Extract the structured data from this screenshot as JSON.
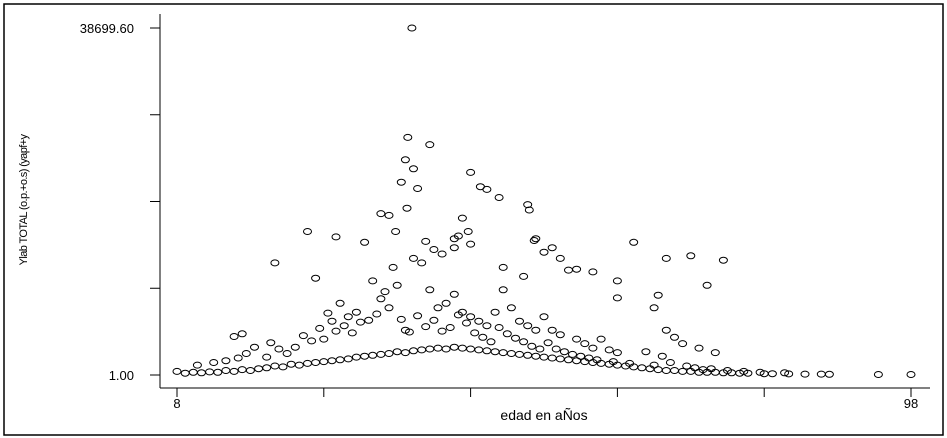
{
  "chart_data": {
    "type": "scatter",
    "xlabel": "edad en aÑos",
    "ylabel": "Ylab TOTAL (o.p.+o.s) (yapf+y",
    "xlim": [
      8,
      98
    ],
    "ylim": [
      1.0,
      38699.6
    ],
    "x_tick_labels": [
      "8",
      "98"
    ],
    "y_tick_labels": [
      "1.00",
      "38699.60"
    ],
    "x_ticks": [
      8,
      26,
      44,
      62,
      80,
      98
    ],
    "y_ticks": [
      1.0,
      9675.15,
      19350.3,
      29024.45,
      38699.6
    ],
    "grid": false,
    "legend": "none",
    "marker": "open-circle",
    "colors": {
      "marker": "#000000",
      "axis": "#000000",
      "background": "#ffffff"
    },
    "points": [
      [
        8,
        400
      ],
      [
        9,
        200
      ],
      [
        10,
        300
      ],
      [
        11,
        250
      ],
      [
        12,
        350
      ],
      [
        13,
        300
      ],
      [
        14,
        500
      ],
      [
        15,
        400
      ],
      [
        16,
        600
      ],
      [
        17,
        500
      ],
      [
        18,
        700
      ],
      [
        19,
        800
      ],
      [
        20,
        1000
      ],
      [
        21,
        900
      ],
      [
        22,
        1200
      ],
      [
        23,
        1100
      ],
      [
        24,
        1300
      ],
      [
        25,
        1400
      ],
      [
        26,
        1500
      ],
      [
        27,
        1600
      ],
      [
        28,
        1700
      ],
      [
        29,
        1800
      ],
      [
        30,
        2000
      ],
      [
        31,
        2100
      ],
      [
        32,
        2200
      ],
      [
        33,
        2300
      ],
      [
        34,
        2400
      ],
      [
        35,
        2600
      ],
      [
        36,
        2500
      ],
      [
        37,
        2700
      ],
      [
        38,
        2800
      ],
      [
        39,
        2900
      ],
      [
        40,
        3000
      ],
      [
        41,
        2900
      ],
      [
        42,
        3100
      ],
      [
        43,
        3000
      ],
      [
        44,
        2900
      ],
      [
        45,
        2800
      ],
      [
        46,
        2700
      ],
      [
        47,
        2600
      ],
      [
        48,
        2500
      ],
      [
        49,
        2400
      ],
      [
        50,
        2300
      ],
      [
        51,
        2200
      ],
      [
        52,
        2100
      ],
      [
        53,
        2000
      ],
      [
        54,
        1900
      ],
      [
        55,
        1800
      ],
      [
        56,
        1700
      ],
      [
        57,
        1600
      ],
      [
        58,
        1500
      ],
      [
        59,
        1400
      ],
      [
        60,
        1300
      ],
      [
        61,
        1200
      ],
      [
        62,
        1100
      ],
      [
        63,
        1000
      ],
      [
        64,
        900
      ],
      [
        65,
        800
      ],
      [
        66,
        700
      ],
      [
        67,
        600
      ],
      [
        68,
        500
      ],
      [
        69,
        500
      ],
      [
        70,
        400
      ],
      [
        71,
        400
      ],
      [
        72,
        300
      ],
      [
        73,
        300
      ],
      [
        74,
        300
      ],
      [
        75,
        250
      ],
      [
        76,
        250
      ],
      [
        77,
        200
      ],
      [
        78,
        200
      ],
      [
        80,
        150
      ],
      [
        81,
        150
      ],
      [
        83,
        120
      ],
      [
        85,
        100
      ],
      [
        87,
        100
      ],
      [
        88,
        80
      ],
      [
        94,
        60
      ],
      [
        98,
        60
      ],
      [
        15,
        4300
      ],
      [
        16,
        4600
      ],
      [
        20,
        12500
      ],
      [
        25,
        10800
      ],
      [
        26,
        4000
      ],
      [
        27,
        6000
      ],
      [
        28,
        8000
      ],
      [
        29,
        6500
      ],
      [
        30,
        7000
      ],
      [
        32,
        10500
      ],
      [
        33,
        8500
      ],
      [
        34,
        7500
      ],
      [
        34.5,
        12000
      ],
      [
        35,
        10000
      ],
      [
        36,
        5000
      ],
      [
        37,
        13000
      ],
      [
        38,
        12500
      ],
      [
        39,
        9500
      ],
      [
        40,
        7500
      ],
      [
        41,
        8000
      ],
      [
        42,
        9000
      ],
      [
        43,
        7000
      ],
      [
        44,
        6500
      ],
      [
        45,
        6000
      ],
      [
        46,
        5500
      ],
      [
        47,
        7000
      ],
      [
        48,
        9500
      ],
      [
        49,
        7500
      ],
      [
        50,
        6000
      ],
      [
        51,
        5500
      ],
      [
        52,
        5000
      ],
      [
        53,
        6500
      ],
      [
        54,
        5000
      ],
      [
        55,
        4500
      ],
      [
        57,
        4000
      ],
      [
        58,
        3500
      ],
      [
        59,
        3000
      ],
      [
        60,
        4000
      ],
      [
        61,
        2800
      ],
      [
        62,
        2500
      ],
      [
        68,
        5000
      ],
      [
        69,
        4200
      ],
      [
        70,
        3500
      ],
      [
        72,
        3000
      ],
      [
        74,
        2500
      ],
      [
        10.5,
        1100
      ],
      [
        12.5,
        1400
      ],
      [
        14,
        1600
      ],
      [
        15.5,
        1900
      ],
      [
        16.5,
        2400
      ],
      [
        17.5,
        3100
      ],
      [
        19,
        2000
      ],
      [
        19.5,
        3600
      ],
      [
        20.5,
        2900
      ],
      [
        21.5,
        2400
      ],
      [
        22.5,
        3100
      ],
      [
        23.5,
        4400
      ],
      [
        24.5,
        3800
      ],
      [
        25.5,
        5200
      ],
      [
        26.5,
        6900
      ],
      [
        27.5,
        4900
      ],
      [
        28.5,
        5500
      ],
      [
        29.5,
        4700
      ],
      [
        30.5,
        5900
      ],
      [
        31.5,
        6100
      ],
      [
        32.5,
        6800
      ],
      [
        33.5,
        9300
      ],
      [
        34.8,
        16000
      ],
      [
        35.5,
        6200
      ],
      [
        36.5,
        4800
      ],
      [
        37.5,
        6600
      ],
      [
        38.5,
        5400
      ],
      [
        39.5,
        6100
      ],
      [
        40.5,
        4900
      ],
      [
        41.5,
        5300
      ],
      [
        42.5,
        6700
      ],
      [
        43.5,
        5800
      ],
      [
        44.5,
        4700
      ],
      [
        45.5,
        4200
      ],
      [
        46.5,
        3700
      ],
      [
        47.5,
        5300
      ],
      [
        48.5,
        4600
      ],
      [
        49.5,
        4100
      ],
      [
        50.5,
        3700
      ],
      [
        51.5,
        3200
      ],
      [
        52.5,
        2900
      ],
      [
        53.5,
        3600
      ],
      [
        54.5,
        2900
      ],
      [
        55.5,
        2600
      ],
      [
        56.5,
        2300
      ],
      [
        57.5,
        2100
      ],
      [
        58.5,
        1900
      ],
      [
        59.5,
        1700
      ],
      [
        61.5,
        1500
      ],
      [
        63.5,
        1300
      ],
      [
        65.5,
        2600
      ],
      [
        66.5,
        1100
      ],
      [
        67.5,
        2100
      ],
      [
        68.5,
        1400
      ],
      [
        70.5,
        1000
      ],
      [
        71.5,
        800
      ],
      [
        72.5,
        600
      ],
      [
        73.5,
        700
      ],
      [
        75.5,
        500
      ],
      [
        77.5,
        400
      ],
      [
        79.5,
        300
      ],
      [
        82.5,
        250
      ],
      [
        24,
        16000
      ],
      [
        27.5,
        15400
      ],
      [
        31,
        14800
      ],
      [
        33,
        18000
      ],
      [
        36.2,
        18600
      ],
      [
        38.5,
        14900
      ],
      [
        39.5,
        14000
      ],
      [
        40.5,
        13500
      ],
      [
        42,
        15200
      ],
      [
        44,
        14600
      ],
      [
        45.2,
        21000
      ],
      [
        46,
        20700
      ],
      [
        48,
        12000
      ],
      [
        52,
        15200
      ],
      [
        55,
        13000
      ],
      [
        56,
        11700
      ],
      [
        57,
        11800
      ],
      [
        59,
        11500
      ],
      [
        62,
        10500
      ],
      [
        68,
        13000
      ],
      [
        71,
        13300
      ],
      [
        73,
        10000
      ],
      [
        75,
        12800
      ],
      [
        34,
        17800
      ],
      [
        35.5,
        21500
      ],
      [
        36,
        24000
      ],
      [
        36.3,
        26500
      ],
      [
        36.8,
        38699.6
      ],
      [
        37,
        23000
      ],
      [
        37.5,
        20800
      ],
      [
        39,
        25700
      ],
      [
        42,
        14200
      ],
      [
        42.5,
        15500
      ],
      [
        43,
        17500
      ],
      [
        43.7,
        16000
      ],
      [
        44,
        22600
      ],
      [
        47.5,
        19800
      ],
      [
        51,
        19000
      ],
      [
        51.2,
        18400
      ],
      [
        51.8,
        15000
      ],
      [
        50.5,
        11000
      ],
      [
        53,
        13700
      ],
      [
        54,
        14200
      ],
      [
        62,
        8600
      ],
      [
        64,
        14800
      ],
      [
        66.5,
        7500
      ],
      [
        67,
        8900
      ]
    ]
  }
}
